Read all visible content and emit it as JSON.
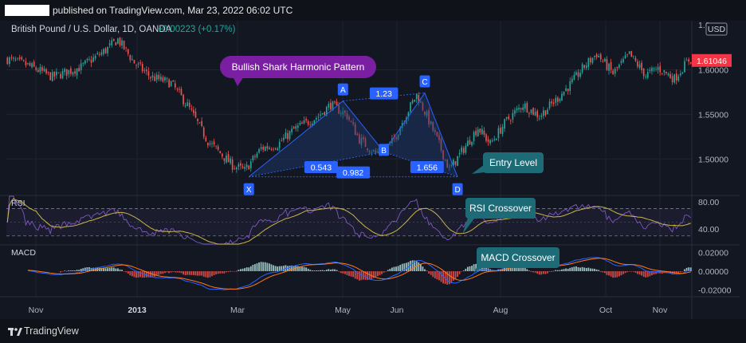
{
  "header": {
    "published_text": "published on TradingView.com, Mar 23, 2022 06:02 UTC"
  },
  "symbol": {
    "name": "British Pound / U.S. Dollar, 1D, OANDA",
    "change": "+0.00223 (+0.17%)",
    "currency": "USD",
    "last_price": "1.61046"
  },
  "footer": {
    "brand": "TradingView"
  },
  "colors": {
    "background": "#131722",
    "up": "#26a69a",
    "down": "#ef5350",
    "pattern_fill": "#1f3b70",
    "pattern_line": "#2962ff",
    "callout_purple": "#7b1fa2",
    "callout_teal": "#1e6b78",
    "rsi_line": "#7e57c2",
    "rsi_ma": "#c9b64a",
    "macd_line": "#2962ff",
    "signal_line": "#ff7a1a",
    "hist_pos": "#b2dfdb",
    "hist_neg": "#ef5350",
    "price_tag": "#f23645"
  },
  "chart_data": [
    {
      "type": "candlestick",
      "title": "British Pound / U.S. Dollar, 1D, OANDA",
      "ylim": [
        1.46,
        1.655
      ],
      "y_ticks": [
        "1.50000",
        "1.55000",
        "1.60000"
      ],
      "y_top_partial": "1.6",
      "x_ticks": [
        "Nov",
        "2013",
        "Mar",
        "May",
        "Jun",
        "Aug",
        "Oct",
        "Nov"
      ],
      "anchors": [
        {
          "i": 0,
          "v": 1.612
        },
        {
          "i": 10,
          "v": 1.605
        },
        {
          "i": 22,
          "v": 1.592
        },
        {
          "i": 36,
          "v": 1.603
        },
        {
          "i": 48,
          "v": 1.622
        },
        {
          "i": 54,
          "v": 1.634
        },
        {
          "i": 62,
          "v": 1.608
        },
        {
          "i": 70,
          "v": 1.592
        },
        {
          "i": 80,
          "v": 1.585
        },
        {
          "i": 88,
          "v": 1.56
        },
        {
          "i": 98,
          "v": 1.52
        },
        {
          "i": 110,
          "v": 1.493
        },
        {
          "i": 116,
          "v": 1.487
        },
        {
          "i": 124,
          "v": 1.512
        },
        {
          "i": 132,
          "v": 1.516
        },
        {
          "i": 140,
          "v": 1.533
        },
        {
          "i": 152,
          "v": 1.548
        },
        {
          "i": 158,
          "v": 1.561
        },
        {
          "i": 166,
          "v": 1.549
        },
        {
          "i": 172,
          "v": 1.522
        },
        {
          "i": 180,
          "v": 1.506
        },
        {
          "i": 188,
          "v": 1.518
        },
        {
          "i": 196,
          "v": 1.555
        },
        {
          "i": 200,
          "v": 1.572
        },
        {
          "i": 204,
          "v": 1.553
        },
        {
          "i": 210,
          "v": 1.522
        },
        {
          "i": 216,
          "v": 1.488
        },
        {
          "i": 222,
          "v": 1.508
        },
        {
          "i": 230,
          "v": 1.535
        },
        {
          "i": 236,
          "v": 1.517
        },
        {
          "i": 244,
          "v": 1.543
        },
        {
          "i": 252,
          "v": 1.561
        },
        {
          "i": 260,
          "v": 1.548
        },
        {
          "i": 268,
          "v": 1.566
        },
        {
          "i": 276,
          "v": 1.586
        },
        {
          "i": 282,
          "v": 1.604
        },
        {
          "i": 288,
          "v": 1.618
        },
        {
          "i": 296,
          "v": 1.596
        },
        {
          "i": 304,
          "v": 1.617
        },
        {
          "i": 312,
          "v": 1.594
        },
        {
          "i": 318,
          "v": 1.602
        },
        {
          "i": 326,
          "v": 1.59
        },
        {
          "i": 333,
          "v": 1.611
        }
      ],
      "pattern": {
        "name": "Bullish Shark Harmonic Pattern",
        "points": [
          {
            "label": "X",
            "i": 118,
            "v": 1.48
          },
          {
            "label": "A",
            "i": 164,
            "v": 1.565
          },
          {
            "label": "B",
            "i": 184,
            "v": 1.508
          },
          {
            "label": "C",
            "i": 204,
            "v": 1.574
          },
          {
            "label": "D",
            "i": 220,
            "v": 1.48
          }
        ],
        "ratios": [
          "1.23",
          "0.543",
          "1.656",
          "0.982"
        ]
      },
      "annotations": [
        "Entry Level"
      ]
    },
    {
      "type": "line",
      "name": "RSI",
      "ylim": [
        18,
        88
      ],
      "y_ticks": [
        "80.00",
        "40.00"
      ],
      "bands": [
        70,
        30
      ],
      "annotations": [
        "RSI Crossover"
      ]
    },
    {
      "type": "histogram",
      "name": "MACD",
      "ylim": [
        -0.027,
        0.027
      ],
      "y_ticks": [
        "0.02000",
        "0.00000",
        "-0.02000"
      ],
      "annotations": [
        "MACD Crossover"
      ]
    }
  ]
}
